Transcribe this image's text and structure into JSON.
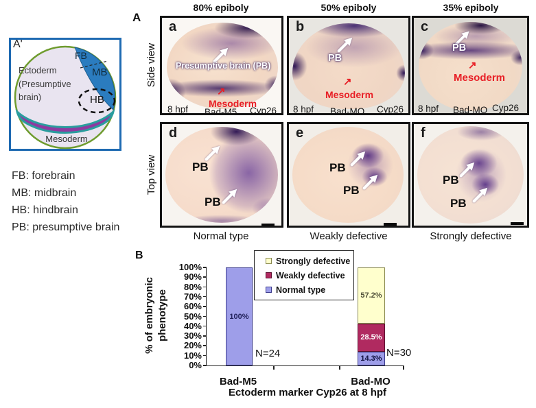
{
  "schematic": {
    "label": "A'",
    "fb": "FB",
    "mb": "MB",
    "hb": "HB",
    "ectoderm": "Ectoderm (Presumptive brain)",
    "mesoderm": "Mesoderm",
    "colors": {
      "frame_blue": "#1e6ab2",
      "circle_green": "#6f9c2f",
      "brain_blue": "#2b7cbf",
      "mesoderm_purple": "#8e3aa0",
      "mesoderm_teal": "#2a9d9e",
      "ectoderm_fill": "#e9e4f0"
    }
  },
  "abbreviations": [
    "FB: forebrain",
    "MB: midbrain",
    "HB: hindbrain",
    "PB: presumptive brain"
  ],
  "panel_a": {
    "label": "A",
    "col_headers": [
      "80% epiboly",
      "50% epiboly",
      "35% epiboly"
    ],
    "row_labels": [
      "Side view",
      "Top view"
    ],
    "micrographs": {
      "a": {
        "letter": "a",
        "stage": "8 hpf",
        "injection": "Bad-M5",
        "probe": "Cyp26",
        "brain_label": "Presumptive brain (PB)",
        "mesoderm_label": "Mesoderm"
      },
      "b": {
        "letter": "b",
        "stage": "8 hpf",
        "injection": "Bad-MO",
        "probe": "Cyp26",
        "brain_label": "PB",
        "mesoderm_label": "Mesoderm"
      },
      "c": {
        "letter": "c",
        "stage": "8 hpf",
        "injection": "Bad-MO",
        "probe": "Cyp26",
        "brain_label": "PB",
        "mesoderm_label": "Mesoderm"
      },
      "d": {
        "letter": "d",
        "pb_upper": "PB",
        "pb_lower": "PB"
      },
      "e": {
        "letter": "e",
        "pb_upper": "PB",
        "pb_lower": "PB"
      },
      "f": {
        "letter": "f",
        "pb_upper": "PB",
        "pb_lower": "PB"
      }
    },
    "captions": [
      "Normal type",
      "Weakly defective",
      "Strongly defective"
    ]
  },
  "chart_label": "B",
  "chart_data": {
    "type": "bar",
    "stacked": true,
    "title": "",
    "categories": [
      "Bad-M5",
      "Bad-MO"
    ],
    "series": [
      {
        "name": "Normal type",
        "color": "#9e9ee9",
        "border": "#3c3c8c",
        "values": [
          100,
          14.3
        ],
        "labels": [
          "100%",
          "14.3%"
        ],
        "label_colors": [
          "#23235e",
          "#101040"
        ]
      },
      {
        "name": "Weakly defective",
        "color": "#b02a60",
        "border": "#5e1030",
        "values": [
          0,
          28.5
        ],
        "labels": [
          "",
          "28.5%"
        ],
        "label_colors": [
          "",
          "#ffffff"
        ]
      },
      {
        "name": "Strongly defective",
        "color": "#ffffcd",
        "border": "#8a8a50",
        "values": [
          0,
          57.2
        ],
        "labels": [
          "",
          "57.2%"
        ],
        "label_colors": [
          "",
          "#50503a"
        ]
      }
    ],
    "n_labels": [
      "N=24",
      "N=30"
    ],
    "xlabel": "Ectoderm marker Cyp26 at 8 hpf",
    "ylabel": "% of embryonic phenotype",
    "ylim": [
      0,
      100
    ],
    "yticks": [
      "100%",
      "90%",
      "80%",
      "70%",
      "60%",
      "50%",
      "40%",
      "30%",
      "20%",
      "10%",
      "0%"
    ],
    "legend_order": [
      "Strongly defective",
      "Weakly defective",
      "Normal type"
    ],
    "legend_position": "inside-top-center",
    "grid": false
  }
}
